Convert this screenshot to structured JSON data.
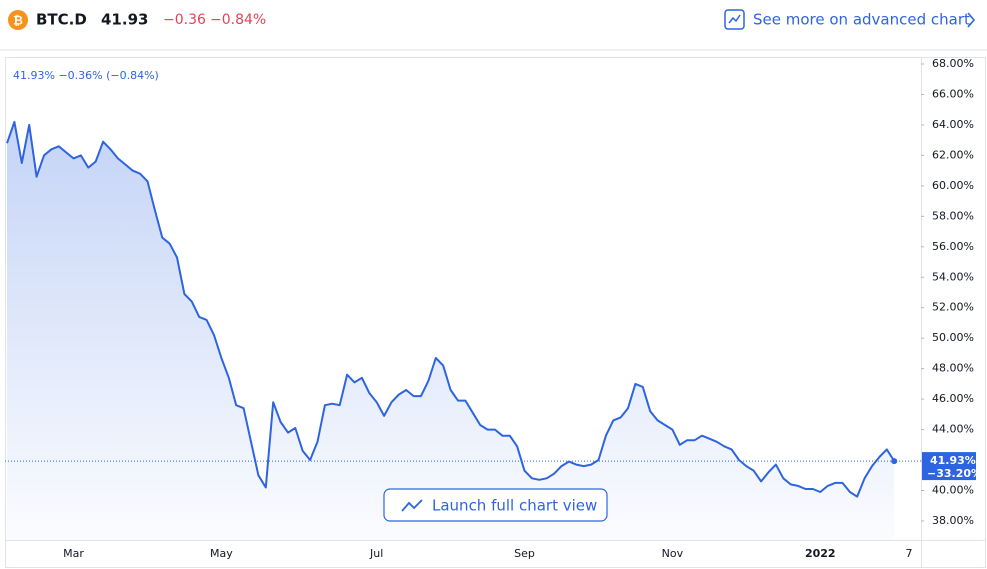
{
  "header": {
    "symbol": "BTC.D",
    "price": "41.93",
    "change": "−0.36",
    "change_pct": "−0.84%",
    "link": "See more on advanced chart"
  },
  "chart_data": {
    "type": "line",
    "legend": "41.93% −0.36% (−0.84%)",
    "button": "Launch full chart view",
    "color": "#2e64e0",
    "last_price": {
      "value": 41.93,
      "label": "41.93%"
    },
    "period_change": "−33.20%",
    "ylim": [
      36.75,
      68.46
    ],
    "yticks": [
      {
        "value": 38,
        "label": "38.00%"
      },
      {
        "value": 40,
        "label": "40.00%"
      },
      {
        "value": 42,
        "label": "42.00%"
      },
      {
        "value": 44,
        "label": "44.00%"
      },
      {
        "value": 46,
        "label": "46.00%"
      },
      {
        "value": 48,
        "label": "48.00%"
      },
      {
        "value": 50,
        "label": "50.00%"
      },
      {
        "value": 52,
        "label": "52.00%"
      },
      {
        "value": 54,
        "label": "54.00%"
      },
      {
        "value": 56,
        "label": "56.00%"
      },
      {
        "value": 58,
        "label": "58.00%"
      },
      {
        "value": 60,
        "label": "60.00%"
      },
      {
        "value": 62,
        "label": "62.00%"
      },
      {
        "value": 64,
        "label": "64.00%"
      },
      {
        "value": 66,
        "label": "66.00%"
      },
      {
        "value": 68,
        "label": "68.00%"
      }
    ],
    "categories": [
      null,
      null,
      null,
      null,
      null,
      null,
      null,
      null,
      null,
      "Mar",
      null,
      null,
      null,
      null,
      null,
      null,
      null,
      null,
      null,
      null,
      null,
      null,
      null,
      null,
      null,
      null,
      null,
      null,
      null,
      "May",
      null,
      null,
      null,
      null,
      null,
      null,
      null,
      null,
      null,
      null,
      null,
      null,
      null,
      null,
      null,
      null,
      null,
      null,
      null,
      null,
      "Jul",
      null,
      null,
      null,
      null,
      null,
      null,
      null,
      null,
      null,
      null,
      null,
      null,
      null,
      null,
      null,
      null,
      null,
      null,
      null,
      "Sep",
      null,
      null,
      null,
      null,
      null,
      null,
      null,
      null,
      null,
      null,
      null,
      null,
      null,
      null,
      null,
      null,
      null,
      null,
      null,
      "Nov",
      null,
      null,
      null,
      null,
      null,
      null,
      null,
      null,
      null,
      null,
      null,
      null,
      null,
      null,
      null,
      null,
      null,
      null,
      null,
      "2022",
      null,
      null,
      null,
      null,
      null,
      null,
      null,
      null,
      null,
      null,
      null,
      "7"
    ],
    "values": [
      62.8,
      64.2,
      61.5,
      64.0,
      60.6,
      62.0,
      62.4,
      62.6,
      62.2,
      61.8,
      62.0,
      61.2,
      61.6,
      62.9,
      62.4,
      61.8,
      61.4,
      61.0,
      60.8,
      60.3,
      58.4,
      56.6,
      56.2,
      55.3,
      52.9,
      52.4,
      51.4,
      51.2,
      50.2,
      48.7,
      47.4,
      45.6,
      45.4,
      43.2,
      41.0,
      40.2,
      45.8,
      44.5,
      43.8,
      44.1,
      42.6,
      42.0,
      43.2,
      45.6,
      45.7,
      45.6,
      47.6,
      47.1,
      47.4,
      46.4,
      45.8,
      44.9,
      45.8,
      46.3,
      46.6,
      46.2,
      46.2,
      47.2,
      48.7,
      48.2,
      46.6,
      45.9,
      45.9,
      45.1,
      44.3,
      44.0,
      44.0,
      43.6,
      43.6,
      42.9,
      41.3,
      40.8,
      40.7,
      40.8,
      41.1,
      41.6,
      41.9,
      41.7,
      41.6,
      41.7,
      42.0,
      43.6,
      44.6,
      44.8,
      45.4,
      47.0,
      46.8,
      45.2,
      44.6,
      44.3,
      44.0,
      43.0,
      43.3,
      43.3,
      43.6,
      43.4,
      43.2,
      42.9,
      42.7,
      42.0,
      41.6,
      41.3,
      40.6,
      41.2,
      41.7,
      40.8,
      40.4,
      40.3,
      40.1,
      40.1,
      39.9,
      40.3,
      40.5,
      40.5,
      39.9,
      39.6,
      40.8,
      41.6,
      42.2,
      42.7,
      41.93,
      null,
      null
    ]
  }
}
